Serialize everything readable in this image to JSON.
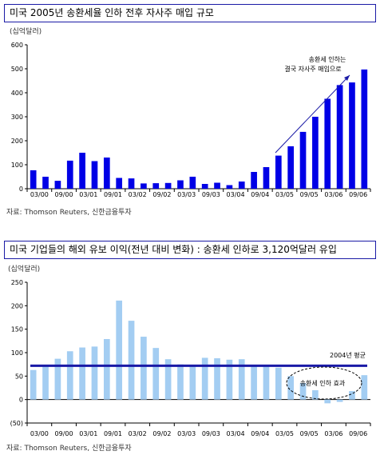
{
  "charts": [
    {
      "title": "미국 2005년 송환세율 인하 전후 자사주 매입 규모",
      "unit": "(십억달러)",
      "source": "자료: Thomson Reuters, 신한금융투자",
      "annotation_lines": [
        "송환세 인하는",
        "결국 자사주 매입으로"
      ]
    },
    {
      "title": "미국 기업들의 해외 유보 이익(전년 대비 변화) : 송환세 인하로 3,120억달러 유입",
      "unit": "(십억달러)",
      "source": "자료: Thomson Reuters, 신한금융투자",
      "annotation_avg": "2004년 평균",
      "annotation_effect": "송환세 인하 효과"
    }
  ],
  "colors": {
    "bar1": "#0000e6",
    "bar2": "#a3cdf2",
    "avg_line": "#1a1aa6",
    "frame": "#1a1aa6"
  },
  "chart_data": [
    {
      "type": "bar",
      "title": "미국 2005년 송환세율 인하 전후 자사주 매입 규모",
      "ylabel": "(십억달러)",
      "ylim": [
        0,
        600
      ],
      "yticks": [
        0,
        100,
        200,
        300,
        400,
        500,
        600
      ],
      "tick_labels": [
        "03/00",
        "09/00",
        "03/01",
        "09/01",
        "03/02",
        "09/02",
        "03/03",
        "09/03",
        "03/04",
        "09/04",
        "03/05",
        "09/05",
        "03/06",
        "09/06"
      ],
      "values": [
        77,
        50,
        33,
        117,
        150,
        115,
        130,
        45,
        43,
        22,
        23,
        24,
        35,
        50,
        20,
        25,
        15,
        30,
        70,
        90,
        138,
        177,
        237,
        300,
        375,
        432,
        443,
        497
      ],
      "grid": false,
      "legend": "none"
    },
    {
      "type": "bar",
      "title": "미국 기업들의 해외 유보 이익(전년 대비 변화) : 송환세 인하로 3,120억달러 유입",
      "ylabel": "(십억달러)",
      "ylim": [
        -50,
        250
      ],
      "yticks": [
        -50,
        0,
        50,
        100,
        150,
        200,
        250
      ],
      "ytick_labels": [
        "(50)",
        "0",
        "50",
        "100",
        "150",
        "200",
        "250"
      ],
      "tick_labels": [
        "03/00",
        "09/00",
        "03/01",
        "09/01",
        "03/02",
        "09/02",
        "03/03",
        "09/03",
        "03/04",
        "09/04",
        "03/05",
        "09/05",
        "03/06",
        "09/06"
      ],
      "values": [
        63,
        70,
        87,
        103,
        111,
        113,
        129,
        211,
        168,
        134,
        110,
        86,
        75,
        74,
        89,
        88,
        85,
        86,
        72,
        70,
        68,
        50,
        35,
        20,
        -8,
        -5,
        18,
        52
      ],
      "reference_line": {
        "label": "2004년 평균",
        "value": 72
      },
      "grid": false,
      "legend": "none"
    }
  ]
}
